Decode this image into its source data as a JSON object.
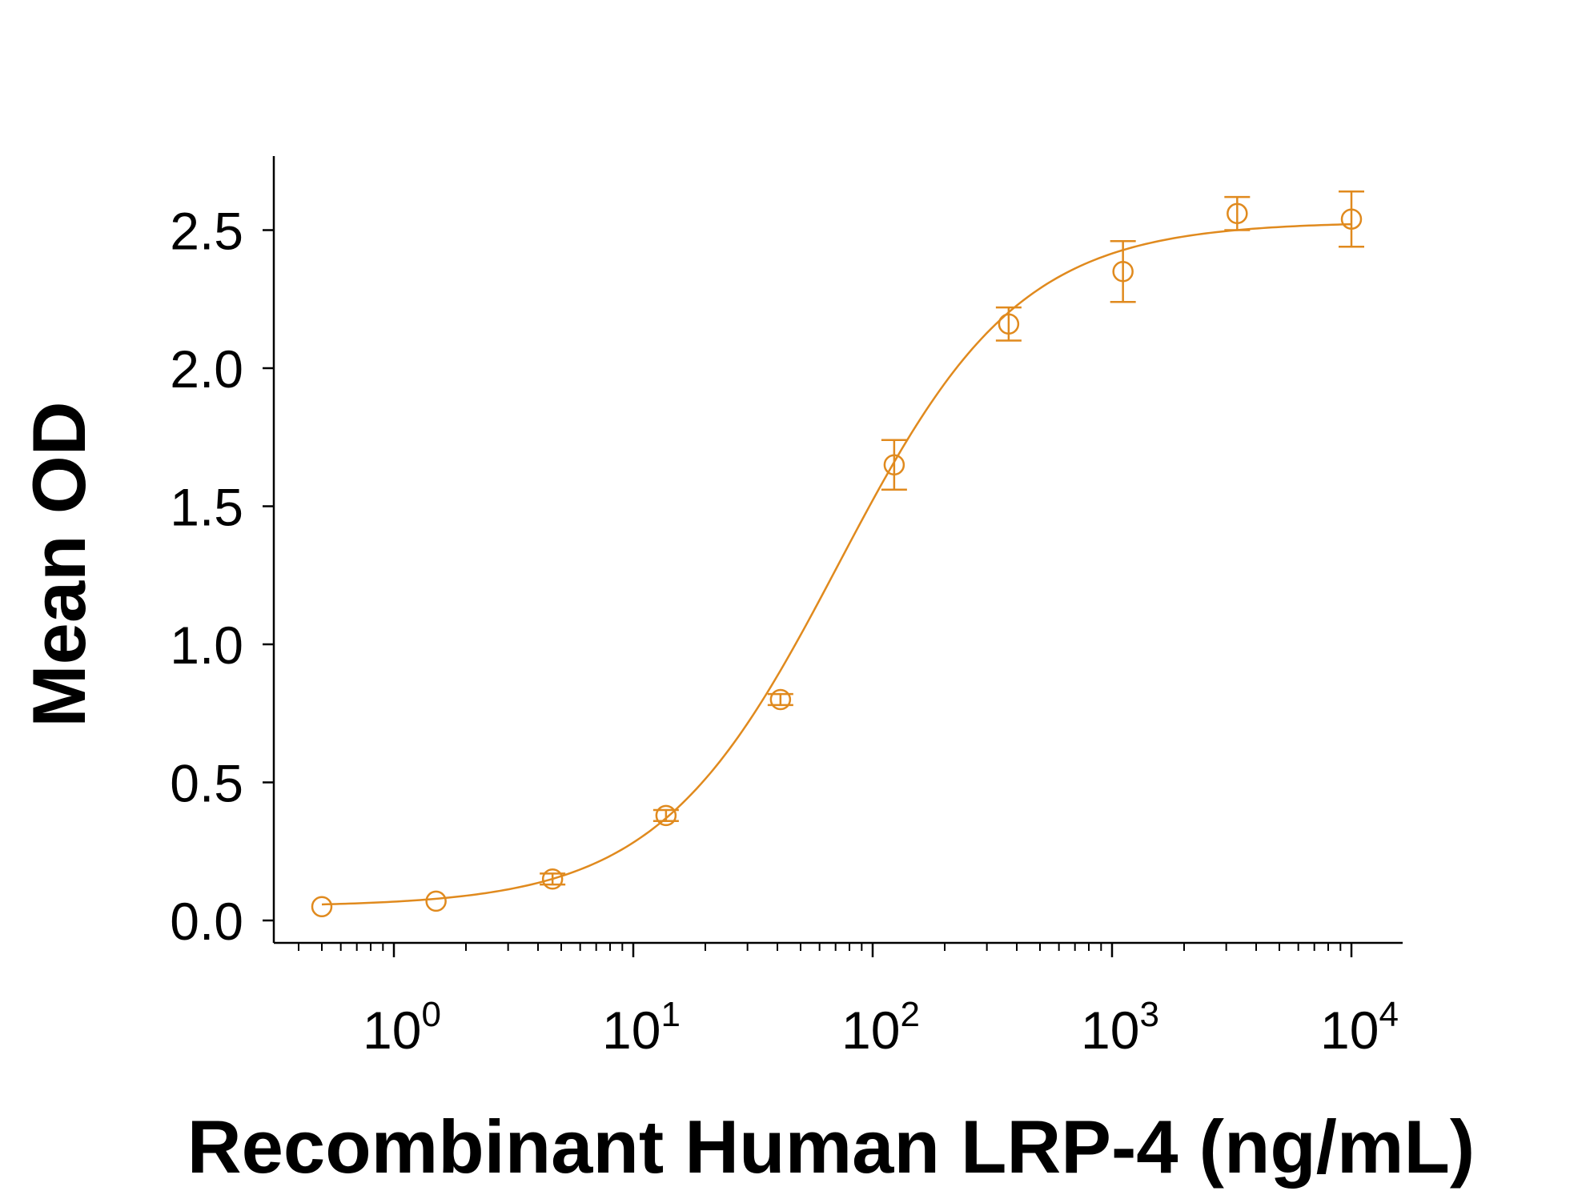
{
  "chart_data": {
    "type": "scatter",
    "title": "",
    "xlabel": "Recombinant Human LRP-4 (ng/mL)",
    "ylabel": "Mean OD",
    "x_scale": "log",
    "xlim": [
      0.27,
      15000
    ],
    "ylim": [
      -0.08,
      2.75
    ],
    "x_ticks": [
      {
        "value": 1,
        "base": "10",
        "exp": "0"
      },
      {
        "value": 10,
        "base": "10",
        "exp": "1"
      },
      {
        "value": 100,
        "base": "10",
        "exp": "2"
      },
      {
        "value": 1000,
        "base": "10",
        "exp": "3"
      },
      {
        "value": 10000,
        "base": "10",
        "exp": "4"
      }
    ],
    "y_ticks": [
      {
        "value": 0.0,
        "label": "0.0"
      },
      {
        "value": 0.5,
        "label": "0.5"
      },
      {
        "value": 1.0,
        "label": "1.0"
      },
      {
        "value": 1.5,
        "label": "1.5"
      },
      {
        "value": 2.0,
        "label": "2.0"
      },
      {
        "value": 2.5,
        "label": "2.5"
      }
    ],
    "grid": false,
    "legend": "none",
    "color": "#e08a1e",
    "series": [
      {
        "marker": "open-circle",
        "x": [
          0.5,
          1.5,
          4.6,
          13.7,
          41.2,
          123,
          370,
          1111,
          3333,
          10000
        ],
        "y": [
          0.05,
          0.07,
          0.15,
          0.38,
          0.8,
          1.65,
          2.16,
          2.35,
          2.56,
          2.54
        ],
        "err": [
          0.0,
          0.0,
          0.02,
          0.02,
          0.02,
          0.09,
          0.06,
          0.11,
          0.06,
          0.1
        ]
      }
    ],
    "fit": {
      "model": "4PL",
      "bottom": 0.05,
      "top": 2.53,
      "ec50": 72,
      "hill": 1.15
    }
  }
}
